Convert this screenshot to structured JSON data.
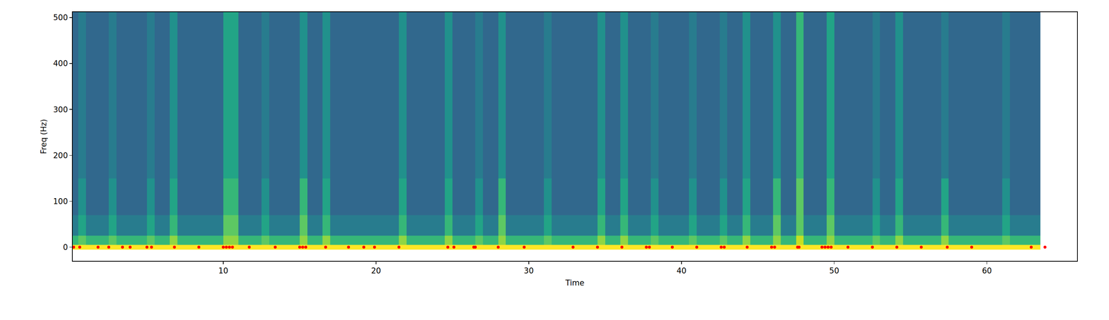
{
  "chart_data": {
    "type": "heatmap",
    "x_label": "Time",
    "y_label": "Freq (Hz)",
    "color": "Viridis",
    "xlim": [
      0.14,
      65.9
    ],
    "ylim": [
      -30,
      512
    ],
    "xticks": [
      10,
      20,
      30,
      40,
      50,
      60
    ],
    "yticks": [
      0,
      100,
      200,
      300,
      400,
      500
    ],
    "zlim": [
      0,
      12
    ],
    "time": [
      0.25,
      0.75,
      1.25,
      1.75,
      2.25,
      2.75,
      3.25,
      3.75,
      4.25,
      4.75,
      5.25,
      5.75,
      6.25,
      6.75,
      7.25,
      7.75,
      8.25,
      8.75,
      9.25,
      9.75,
      10.25,
      10.75,
      11.25,
      11.75,
      12.25,
      12.75,
      13.25,
      13.75,
      14.25,
      14.75,
      15.25,
      15.75,
      16.25,
      16.75,
      17.25,
      17.75,
      18.25,
      18.75,
      19.25,
      19.75,
      20.25,
      20.75,
      21.25,
      21.75,
      22.25,
      22.75,
      23.25,
      23.75,
      24.25,
      24.75,
      25.25,
      25.75,
      26.25,
      26.75,
      27.25,
      27.75,
      28.25,
      28.75,
      29.25,
      29.75,
      30.25,
      30.75,
      31.25,
      31.75,
      32.25,
      32.75,
      33.25,
      33.75,
      34.25,
      34.75,
      35.25,
      35.75,
      36.25,
      36.75,
      37.25,
      37.75,
      38.25,
      38.75,
      39.25,
      39.75,
      40.25,
      40.75,
      41.25,
      41.75,
      42.25,
      42.75,
      43.25,
      43.75,
      44.25,
      44.75,
      45.25,
      45.75,
      46.25,
      46.75,
      47.25,
      47.75,
      48.25,
      48.75,
      49.25,
      49.75,
      50.25,
      50.75,
      51.25,
      51.75,
      52.25,
      52.75,
      53.25,
      53.75,
      54.25,
      54.75,
      55.25,
      55.75,
      56.25,
      56.75,
      57.25,
      57.75,
      58.25,
      58.75,
      59.25,
      59.75,
      60.25,
      60.75,
      61.25,
      61.75,
      62.25,
      62.75,
      63.25
    ],
    "freq": [
      0,
      10,
      40,
      100,
      200,
      300,
      400,
      490
    ],
    "cells": [
      [
        12,
        12,
        12,
        12,
        12,
        12,
        12,
        12,
        12,
        12,
        12,
        12,
        12,
        12,
        12,
        12,
        12,
        12,
        12,
        12,
        12,
        12,
        12,
        12,
        12,
        12,
        12,
        12,
        12,
        12,
        12,
        12,
        12,
        12,
        12,
        12,
        12,
        12,
        12,
        12,
        12,
        12,
        12,
        12,
        12,
        12,
        12,
        12,
        12,
        12,
        12,
        12,
        12,
        12,
        12,
        12,
        12,
        12,
        12,
        12,
        12,
        12,
        12,
        12,
        12,
        12,
        12,
        12,
        12,
        12,
        12,
        12,
        12,
        12,
        12,
        12,
        12,
        12,
        12,
        12,
        12,
        12,
        12,
        12,
        12,
        12,
        12,
        12,
        12,
        12,
        12,
        12,
        12,
        12,
        12,
        12,
        12,
        12,
        12,
        12,
        12,
        12,
        12,
        12,
        12,
        12,
        12,
        12,
        12,
        12,
        12,
        12,
        12,
        12,
        12,
        12,
        12,
        12,
        12,
        12,
        12,
        12,
        12,
        12,
        12,
        12,
        12
      ],
      [
        8,
        9,
        8,
        8,
        8,
        9,
        8,
        8,
        8,
        8,
        9,
        8,
        8,
        10,
        8,
        8,
        8,
        8,
        8,
        8,
        10,
        10,
        8,
        8,
        8,
        9,
        8,
        8,
        8,
        8,
        10,
        8,
        8,
        10,
        8,
        8,
        8,
        8,
        8,
        8,
        8,
        8,
        8,
        10,
        8,
        8,
        8,
        8,
        8,
        10,
        8,
        8,
        8,
        9,
        8,
        8,
        10,
        8,
        8,
        8,
        8,
        8,
        9,
        8,
        8,
        8,
        8,
        8,
        8,
        10,
        8,
        8,
        10,
        8,
        8,
        8,
        9,
        8,
        8,
        8,
        8,
        9,
        8,
        8,
        8,
        9,
        8,
        8,
        10,
        8,
        8,
        8,
        10,
        8,
        8,
        11,
        8,
        8,
        8,
        10,
        8,
        8,
        8,
        8,
        8,
        9,
        8,
        8,
        10,
        8,
        8,
        8,
        8,
        8,
        10,
        8,
        8,
        8,
        8,
        8,
        8,
        8,
        9,
        8,
        8,
        8,
        8
      ],
      [
        5,
        7,
        5,
        5,
        5,
        7,
        5,
        5,
        5,
        5,
        7,
        5,
        5,
        8,
        5,
        5,
        5,
        5,
        5,
        5,
        9,
        9,
        5,
        5,
        5,
        7,
        5,
        5,
        5,
        5,
        9,
        5,
        5,
        8,
        5,
        5,
        5,
        5,
        5,
        5,
        5,
        5,
        5,
        8,
        5,
        5,
        5,
        5,
        5,
        8,
        5,
        5,
        5,
        7,
        5,
        5,
        9,
        5,
        5,
        5,
        5,
        5,
        7,
        5,
        5,
        5,
        5,
        5,
        5,
        8,
        5,
        5,
        8,
        5,
        5,
        5,
        7,
        5,
        5,
        5,
        5,
        7,
        5,
        5,
        5,
        7,
        5,
        5,
        8,
        5,
        5,
        5,
        9,
        5,
        5,
        9,
        5,
        5,
        5,
        9,
        5,
        5,
        5,
        5,
        5,
        7,
        5,
        5,
        8,
        5,
        5,
        5,
        5,
        5,
        8,
        5,
        5,
        5,
        5,
        5,
        5,
        5,
        7,
        5,
        5,
        5,
        5
      ],
      [
        4,
        6,
        4,
        4,
        4,
        6,
        4,
        4,
        4,
        4,
        6,
        4,
        4,
        7,
        4,
        4,
        4,
        4,
        4,
        4,
        8,
        8,
        4,
        4,
        4,
        6,
        4,
        4,
        4,
        4,
        8,
        4,
        4,
        7,
        4,
        4,
        4,
        4,
        4,
        4,
        4,
        4,
        4,
        7,
        4,
        4,
        4,
        4,
        4,
        7,
        4,
        4,
        4,
        6,
        4,
        4,
        8,
        4,
        4,
        4,
        4,
        4,
        6,
        4,
        4,
        4,
        4,
        4,
        4,
        7,
        4,
        4,
        7,
        4,
        4,
        4,
        6,
        4,
        4,
        4,
        4,
        6,
        4,
        4,
        4,
        6,
        4,
        4,
        7,
        4,
        4,
        4,
        8,
        4,
        4,
        9,
        4,
        4,
        4,
        8,
        4,
        4,
        4,
        4,
        4,
        6,
        4,
        4,
        7,
        4,
        4,
        4,
        4,
        4,
        7,
        4,
        4,
        4,
        4,
        4,
        4,
        4,
        6,
        4,
        4,
        4,
        4
      ],
      [
        4,
        5,
        4,
        4,
        4,
        5,
        4,
        4,
        4,
        4,
        5,
        4,
        4,
        6,
        4,
        4,
        4,
        4,
        4,
        4,
        7,
        7,
        4,
        4,
        4,
        5,
        4,
        4,
        4,
        4,
        6,
        4,
        4,
        6,
        4,
        4,
        4,
        4,
        4,
        4,
        4,
        4,
        4,
        6,
        4,
        4,
        4,
        4,
        4,
        6,
        4,
        4,
        4,
        5,
        4,
        4,
        6,
        4,
        4,
        4,
        4,
        4,
        5,
        4,
        4,
        4,
        4,
        4,
        4,
        6,
        4,
        4,
        6,
        4,
        4,
        4,
        5,
        4,
        4,
        4,
        4,
        5,
        4,
        4,
        4,
        5,
        4,
        4,
        6,
        4,
        4,
        4,
        6,
        4,
        4,
        8,
        4,
        4,
        4,
        7,
        4,
        4,
        4,
        4,
        4,
        5,
        4,
        4,
        6,
        4,
        4,
        4,
        4,
        4,
        5,
        4,
        4,
        4,
        4,
        4,
        4,
        4,
        5,
        4,
        4,
        4,
        4
      ],
      [
        4,
        5,
        4,
        4,
        4,
        5,
        4,
        4,
        4,
        4,
        5,
        4,
        4,
        6,
        4,
        4,
        4,
        4,
        4,
        4,
        7,
        7,
        4,
        4,
        4,
        5,
        4,
        4,
        4,
        4,
        6,
        4,
        4,
        6,
        4,
        4,
        4,
        4,
        4,
        4,
        4,
        4,
        4,
        6,
        4,
        4,
        4,
        4,
        4,
        6,
        4,
        4,
        4,
        5,
        4,
        4,
        6,
        4,
        4,
        4,
        4,
        4,
        5,
        4,
        4,
        4,
        4,
        4,
        4,
        6,
        4,
        4,
        6,
        4,
        4,
        4,
        5,
        4,
        4,
        4,
        4,
        5,
        4,
        4,
        4,
        5,
        4,
        4,
        6,
        4,
        4,
        4,
        6,
        4,
        4,
        8,
        4,
        4,
        4,
        7,
        4,
        4,
        4,
        4,
        4,
        5,
        4,
        4,
        6,
        4,
        4,
        4,
        4,
        4,
        5,
        4,
        4,
        4,
        4,
        4,
        4,
        4,
        5,
        4,
        4,
        4,
        4
      ],
      [
        4,
        5,
        4,
        4,
        4,
        5,
        4,
        4,
        4,
        4,
        5,
        4,
        4,
        6,
        4,
        4,
        4,
        4,
        4,
        4,
        7,
        7,
        4,
        4,
        4,
        5,
        4,
        4,
        4,
        4,
        6,
        4,
        4,
        6,
        4,
        4,
        4,
        4,
        4,
        4,
        4,
        4,
        4,
        6,
        4,
        4,
        4,
        4,
        4,
        6,
        4,
        4,
        4,
        5,
        4,
        4,
        6,
        4,
        4,
        4,
        4,
        4,
        5,
        4,
        4,
        4,
        4,
        4,
        4,
        6,
        4,
        4,
        6,
        4,
        4,
        4,
        5,
        4,
        4,
        4,
        4,
        5,
        4,
        4,
        4,
        5,
        4,
        4,
        6,
        4,
        4,
        4,
        6,
        4,
        4,
        8,
        4,
        4,
        4,
        7,
        4,
        4,
        4,
        4,
        4,
        5,
        4,
        4,
        6,
        4,
        4,
        4,
        4,
        4,
        5,
        4,
        4,
        4,
        4,
        4,
        4,
        4,
        5,
        4,
        4,
        4,
        4
      ],
      [
        4,
        5,
        4,
        4,
        4,
        5,
        4,
        4,
        4,
        4,
        5,
        4,
        4,
        6,
        4,
        4,
        4,
        4,
        4,
        4,
        7,
        7,
        4,
        4,
        4,
        5,
        4,
        4,
        4,
        4,
        6,
        4,
        4,
        6,
        4,
        4,
        4,
        4,
        4,
        4,
        4,
        4,
        4,
        6,
        4,
        4,
        4,
        4,
        4,
        6,
        4,
        4,
        4,
        5,
        4,
        4,
        6,
        4,
        4,
        4,
        4,
        4,
        5,
        4,
        4,
        4,
        4,
        4,
        4,
        6,
        4,
        4,
        6,
        4,
        4,
        4,
        5,
        4,
        4,
        4,
        4,
        5,
        4,
        4,
        4,
        5,
        4,
        4,
        6,
        4,
        4,
        4,
        6,
        4,
        4,
        8,
        4,
        4,
        4,
        7,
        4,
        4,
        4,
        4,
        4,
        5,
        4,
        4,
        6,
        4,
        4,
        4,
        4,
        4,
        5,
        4,
        4,
        4,
        4,
        4,
        4,
        4,
        5,
        4,
        4,
        4,
        4
      ]
    ],
    "series": [
      {
        "type": "scatter",
        "color": "#ff0000",
        "marker": "circle",
        "x": [
          0.2,
          0.6,
          1.8,
          2.5,
          3.4,
          3.9,
          5.0,
          5.3,
          6.8,
          8.4,
          10.0,
          10.2,
          10.4,
          10.6,
          11.7,
          13.4,
          15.0,
          15.2,
          15.4,
          16.7,
          18.2,
          19.2,
          19.9,
          21.5,
          24.7,
          25.1,
          26.4,
          26.5,
          28.0,
          29.7,
          32.9,
          34.5,
          36.1,
          37.7,
          37.9,
          39.4,
          41.0,
          42.6,
          42.8,
          44.3,
          45.9,
          46.1,
          47.6,
          47.7,
          49.2,
          49.4,
          49.6,
          49.8,
          50.9,
          52.5,
          54.1,
          55.7,
          57.4,
          59.0,
          62.9,
          63.8
        ],
        "y": [
          0,
          0,
          0,
          0,
          0,
          0,
          0,
          0,
          0,
          0,
          0,
          0,
          0,
          0,
          0,
          0,
          0,
          0,
          0,
          0,
          0,
          0,
          0,
          0,
          0,
          0,
          0,
          0,
          0,
          0,
          0,
          0,
          0,
          0,
          0,
          0,
          0,
          0,
          0,
          0,
          0,
          0,
          0,
          0,
          0,
          0,
          0,
          0,
          0,
          0,
          0,
          0,
          0,
          0,
          0,
          0
        ]
      }
    ]
  }
}
